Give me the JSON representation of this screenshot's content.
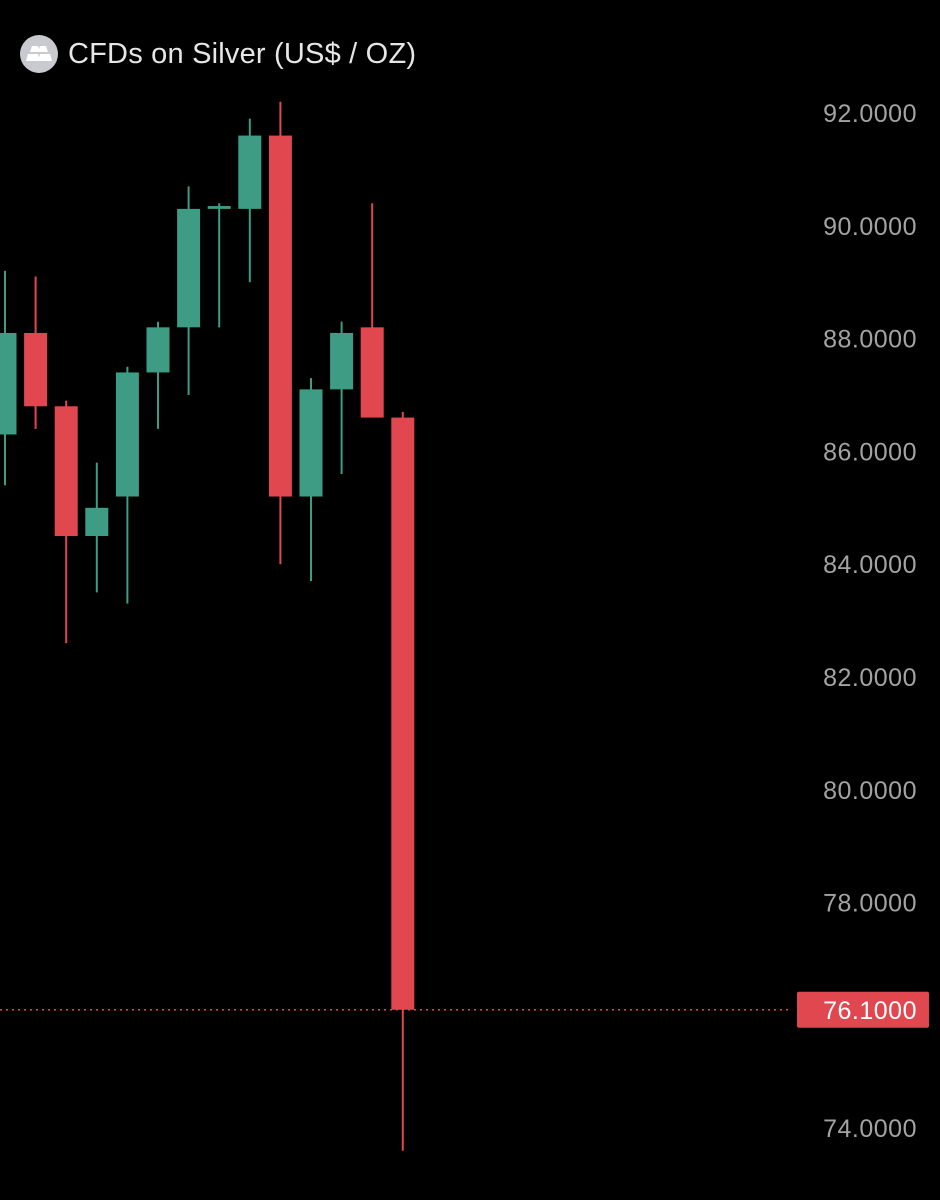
{
  "header": {
    "title": "CFDs on Silver (US$ / OZ)",
    "icon": "silver-bars-icon"
  },
  "colors": {
    "background": "#000000",
    "up": "#3e9c84",
    "down": "#e0474f",
    "axis_text": "#a3a3a3",
    "current_price_line": "#e0474f"
  },
  "chart_data": {
    "type": "candlestick",
    "title": "CFDs on Silver (US$ / OZ)",
    "ylim": [
      73.2,
      94.0
    ],
    "y_ticks": [
      "92.0000",
      "90.0000",
      "88.0000",
      "86.0000",
      "84.0000",
      "82.0000",
      "80.0000",
      "78.0000",
      "76.0000",
      "74.0000"
    ],
    "y_tick_values": [
      92,
      90,
      88,
      86,
      84,
      82,
      80,
      78,
      76,
      74
    ],
    "current_price": 76.1,
    "current_price_label": "76.1000",
    "candles": [
      {
        "open": 86.3,
        "high": 89.2,
        "low": 85.4,
        "close": 88.1
      },
      {
        "open": 88.1,
        "high": 89.1,
        "low": 86.4,
        "close": 86.8
      },
      {
        "open": 86.8,
        "high": 86.9,
        "low": 82.6,
        "close": 84.5
      },
      {
        "open": 84.5,
        "high": 85.8,
        "low": 83.5,
        "close": 85.0
      },
      {
        "open": 85.2,
        "high": 87.5,
        "low": 83.3,
        "close": 87.4
      },
      {
        "open": 87.4,
        "high": 88.3,
        "low": 86.4,
        "close": 88.2
      },
      {
        "open": 88.2,
        "high": 90.7,
        "low": 87.0,
        "close": 90.3
      },
      {
        "open": 90.3,
        "high": 90.4,
        "low": 88.2,
        "close": 90.35
      },
      {
        "open": 90.3,
        "high": 91.9,
        "low": 89.0,
        "close": 91.6
      },
      {
        "open": 91.6,
        "high": 92.2,
        "low": 84.0,
        "close": 85.2
      },
      {
        "open": 85.2,
        "high": 87.3,
        "low": 83.7,
        "close": 87.1
      },
      {
        "open": 87.1,
        "high": 88.3,
        "low": 85.6,
        "close": 88.1
      },
      {
        "open": 88.2,
        "high": 90.4,
        "low": 86.6,
        "close": 86.6
      },
      {
        "open": 86.6,
        "high": 86.7,
        "low": 73.6,
        "close": 76.1
      }
    ]
  }
}
